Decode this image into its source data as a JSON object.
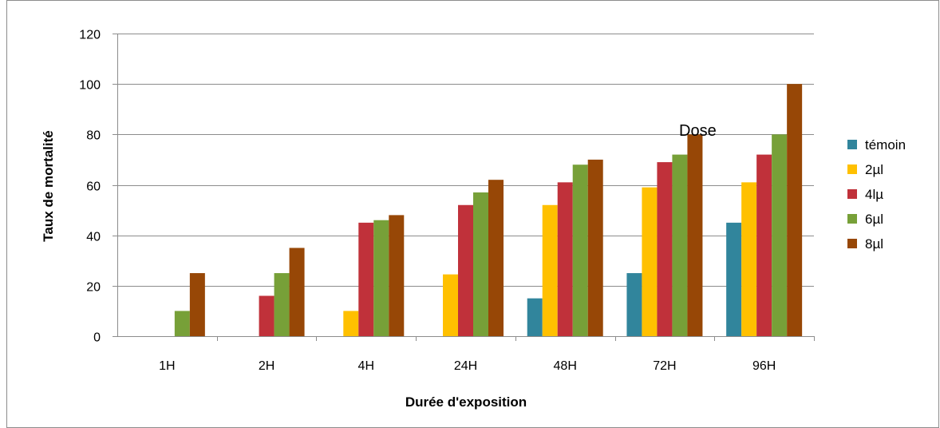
{
  "chart_data": {
    "type": "bar",
    "title": "",
    "xlabel": "Durée d'exposition",
    "ylabel": "Taux de mortalité",
    "ylim": [
      0,
      120
    ],
    "yticks": [
      "0",
      "20",
      "40",
      "60",
      "80",
      "100",
      "120"
    ],
    "categories": [
      "1H",
      "2H",
      "4H",
      "24H",
      "48H",
      "72H",
      "96H"
    ],
    "grid": true,
    "legend_position": "right",
    "annotation": "Dose",
    "series": [
      {
        "name": "témoin",
        "color": "#31859C",
        "values": [
          0,
          0,
          0,
          0,
          15,
          25,
          45
        ]
      },
      {
        "name": "2µl",
        "color": "#FFC000",
        "values": [
          0,
          0,
          10,
          24.5,
          52,
          59,
          61
        ]
      },
      {
        "name": "4lµ",
        "color": "#C0313A",
        "values": [
          0,
          16,
          45,
          52,
          61,
          69,
          72
        ]
      },
      {
        "name": "6µl",
        "color": "#77A038",
        "values": [
          10,
          25,
          46,
          57,
          68,
          72,
          80
        ]
      },
      {
        "name": "8µl",
        "color": "#974706",
        "values": [
          25,
          35,
          48,
          62,
          70,
          80,
          100
        ]
      }
    ]
  }
}
